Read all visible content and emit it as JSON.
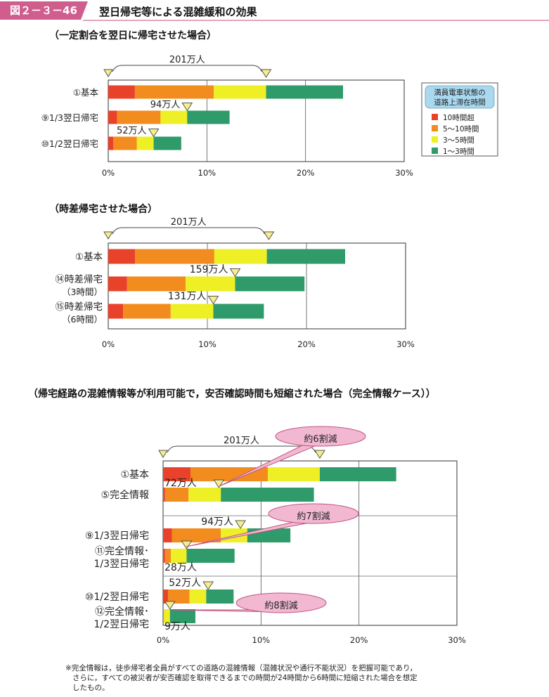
{
  "header": {
    "figure_no": "図２－３－46",
    "title": "翌日帰宅等による混雑緩和の効果"
  },
  "sections": [
    "（一定割合を翌日に帰宅させた場合）",
    "（時差帰宅させた場合）",
    "（帰宅経路の混雑情報等が利用可能で，安否確認時間も短縮された場合（完全情報ケース））"
  ],
  "legend": {
    "title_lines": [
      "満員電車状態の",
      "道路上滞在時間"
    ],
    "items": [
      {
        "label": "10時間超",
        "color": "#e8432a"
      },
      {
        "label": "5～10時間",
        "color": "#f28c1e"
      },
      {
        "label": "3～5時間",
        "color": "#eef025"
      },
      {
        "label": "1～3時間",
        "color": "#2f9a6a"
      }
    ]
  },
  "colors": {
    "legend_bg": "#a9d8ef",
    "callout_fill": "#f2b8d2",
    "callout_stroke": "#c0557f",
    "marker": "#f6ee8a"
  },
  "chart_data": [
    {
      "type": "bar",
      "orientation": "horizontal",
      "stacked": true,
      "xlim": [
        0,
        30
      ],
      "xticks": [
        "0%",
        "10%",
        "20%",
        "30%"
      ],
      "series_names": [
        "10時間超",
        "5～10時間",
        "3～5時間",
        "1～3時間"
      ],
      "rows": [
        {
          "label": [
            "①基本"
          ],
          "values": [
            2.7,
            8.0,
            5.3,
            7.8
          ],
          "people": "201万人",
          "marker": 16.0
        },
        {
          "label": [
            "⑨1/3翌日帰宅"
          ],
          "values": [
            0.9,
            4.4,
            2.7,
            4.3
          ],
          "people": "94万人",
          "marker": 8.0
        },
        {
          "label": [
            "⑩1/2翌日帰宅"
          ],
          "values": [
            0.5,
            2.4,
            1.7,
            2.8
          ],
          "people": "52万人",
          "marker": 4.6
        }
      ]
    },
    {
      "type": "bar",
      "orientation": "horizontal",
      "stacked": true,
      "xlim": [
        0,
        30
      ],
      "xticks": [
        "0%",
        "10%",
        "20%",
        "30%"
      ],
      "series_names": [
        "10時間超",
        "5～10時間",
        "3～5時間",
        "1～3時間"
      ],
      "rows": [
        {
          "label": [
            "①基本",
            ""
          ],
          "values": [
            2.7,
            8.0,
            5.3,
            7.9
          ],
          "people": "201万人",
          "marker": 16.2
        },
        {
          "label": [
            "⑭時差帰宅",
            "（3時間）"
          ],
          "values": [
            1.9,
            5.9,
            5.0,
            7.0
          ],
          "people": "159万人",
          "marker": 12.8
        },
        {
          "label": [
            "⑮時差帰宅",
            "（6時間）"
          ],
          "values": [
            1.5,
            4.8,
            4.3,
            5.1
          ],
          "people": "131万人",
          "marker": 10.6
        }
      ]
    },
    {
      "type": "bar",
      "orientation": "horizontal",
      "stacked": true,
      "xlim": [
        0,
        30
      ],
      "xticks": [
        "0%",
        "10%",
        "20%",
        "30%"
      ],
      "series_names": [
        "10時間超",
        "5～10時間",
        "3～5時間",
        "1～3時間"
      ],
      "rows": [
        {
          "label": [
            "①基本"
          ],
          "values": [
            2.8,
            7.9,
            5.3,
            7.8
          ],
          "people": "201万人",
          "marker": 16.0
        },
        {
          "label": [
            "⑤完全情報"
          ],
          "values": [
            0.2,
            2.4,
            3.3,
            9.5
          ],
          "people": "72万人",
          "marker": 5.7
        },
        {
          "label": [
            "⑨1/3翌日帰宅"
          ],
          "values": [
            0.9,
            5.0,
            2.7,
            4.4
          ],
          "people": "94万人",
          "marker": 7.9
        },
        {
          "label": [
            "⑪完全情報･",
            "1/3翌日帰宅"
          ],
          "values": [
            0.2,
            0.6,
            1.6,
            4.9
          ],
          "people": "28万人",
          "marker": 2.4
        },
        {
          "label": [
            "⑩1/2翌日帰宅"
          ],
          "values": [
            0.5,
            2.2,
            1.7,
            2.8
          ],
          "people": "52万人",
          "marker": 4.6
        },
        {
          "label": [
            "⑫完全情報･",
            "1/2翌日帰宅"
          ],
          "values": [
            0.0,
            0.1,
            0.6,
            2.6
          ],
          "people": "9万人",
          "marker": 0.7
        }
      ],
      "callouts": [
        "約6割減",
        "約7割減",
        "約8割減"
      ]
    }
  ],
  "footnote": [
    "※完全情報は，徒歩帰宅者全員がすべての道路の混雑情報（混雑状況や通行不能状況）を把握可能であり，",
    "さらに，すべての被災者が安否確認を取得できるまでの時間が24時間から6時間に短縮された場合を想定",
    "したもの。"
  ]
}
